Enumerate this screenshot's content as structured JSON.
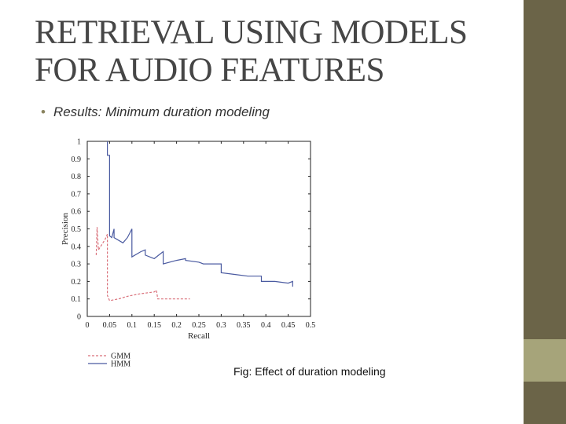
{
  "slide": {
    "title_lines": [
      "RETRIEVAL USING MODELS",
      "FOR AUDIO FEATURES"
    ],
    "bullet": "Results: Minimum duration modeling",
    "caption": "Fig: Effect of duration modeling",
    "colors": {
      "sidebar": "#6b6448",
      "sidebar_accent": "#a6a47a",
      "bullet": "#8a8460"
    }
  },
  "chart_data": {
    "type": "line",
    "xlabel": "Recall",
    "ylabel": "Precision",
    "xlim": [
      0,
      0.5
    ],
    "ylim": [
      0,
      1
    ],
    "x_ticks": [
      "0",
      "0.05",
      "0.1",
      "0.15",
      "0.2",
      "0.25",
      "0.3",
      "0.35",
      "0.4",
      "0.45",
      "0.5"
    ],
    "y_ticks": [
      "0",
      "0.1",
      "0.2",
      "0.3",
      "0.4",
      "0.5",
      "0.6",
      "0.7",
      "0.8",
      "0.9",
      "1"
    ],
    "legend_position": "bottom-left",
    "series": [
      {
        "name": "GMM",
        "style": "dashed",
        "color": "#d9707a",
        "points": [
          [
            0.02,
            0.35
          ],
          [
            0.022,
            0.51
          ],
          [
            0.025,
            0.38
          ],
          [
            0.04,
            0.44
          ],
          [
            0.045,
            0.47
          ],
          [
            0.045,
            0.12
          ],
          [
            0.05,
            0.09
          ],
          [
            0.07,
            0.1
          ],
          [
            0.09,
            0.115
          ],
          [
            0.1,
            0.12
          ],
          [
            0.12,
            0.13
          ],
          [
            0.15,
            0.14
          ],
          [
            0.155,
            0.15
          ],
          [
            0.158,
            0.1
          ],
          [
            0.18,
            0.1
          ],
          [
            0.2,
            0.1
          ],
          [
            0.23,
            0.1
          ]
        ]
      },
      {
        "name": "HMM",
        "style": "solid",
        "color": "#4a5aa0",
        "points": [
          [
            0.045,
            1.0
          ],
          [
            0.045,
            0.92
          ],
          [
            0.05,
            0.92
          ],
          [
            0.05,
            0.46
          ],
          [
            0.055,
            0.45
          ],
          [
            0.06,
            0.5
          ],
          [
            0.06,
            0.45
          ],
          [
            0.08,
            0.42
          ],
          [
            0.09,
            0.45
          ],
          [
            0.1,
            0.5
          ],
          [
            0.1,
            0.34
          ],
          [
            0.12,
            0.37
          ],
          [
            0.13,
            0.38
          ],
          [
            0.13,
            0.35
          ],
          [
            0.15,
            0.33
          ],
          [
            0.16,
            0.35
          ],
          [
            0.17,
            0.37
          ],
          [
            0.17,
            0.3
          ],
          [
            0.2,
            0.32
          ],
          [
            0.22,
            0.33
          ],
          [
            0.22,
            0.32
          ],
          [
            0.25,
            0.31
          ],
          [
            0.26,
            0.3
          ],
          [
            0.28,
            0.3
          ],
          [
            0.3,
            0.3
          ],
          [
            0.3,
            0.25
          ],
          [
            0.33,
            0.24
          ],
          [
            0.36,
            0.23
          ],
          [
            0.39,
            0.23
          ],
          [
            0.39,
            0.2
          ],
          [
            0.42,
            0.2
          ],
          [
            0.45,
            0.19
          ],
          [
            0.46,
            0.2
          ],
          [
            0.46,
            0.17
          ]
        ]
      }
    ]
  }
}
